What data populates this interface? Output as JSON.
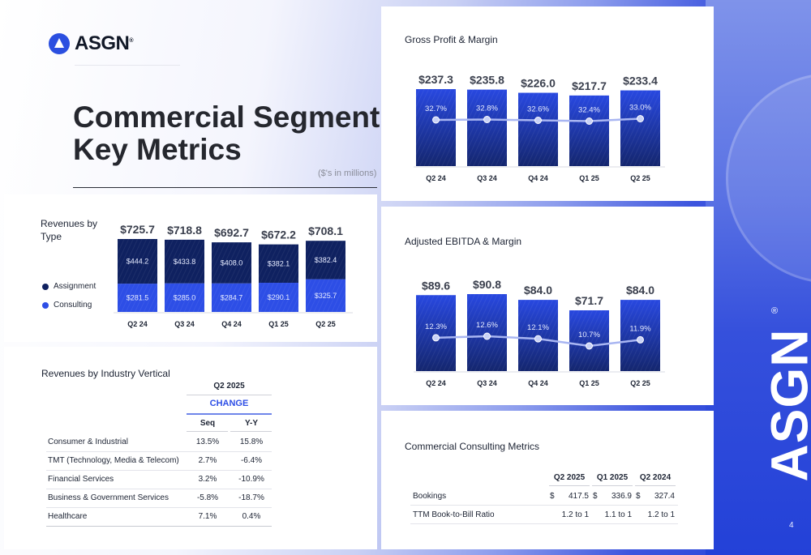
{
  "brand": {
    "name": "ASGN",
    "registered": "®",
    "page_number": "4"
  },
  "header": {
    "title_line1": "Commercial Segment",
    "title_line2": "Key Metrics",
    "units_note": "($'s in millions)"
  },
  "colors": {
    "assignment": "#0f2160",
    "consulting": "#2d4ee6",
    "bar_blue": "#2544d8",
    "line": "#a9b6f2",
    "accent_text": "#2d4ee6"
  },
  "revenues_by_type": {
    "title_line1": "Revenues by",
    "title_line2": "Type",
    "legend": [
      {
        "label": "Assignment",
        "color": "#0f2160"
      },
      {
        "label": "Consulting",
        "color": "#2d4ee6"
      }
    ]
  },
  "industry": {
    "title": "Revenues by Industry Vertical",
    "period": "Q2 2025",
    "change_label": "CHANGE",
    "columns": [
      "Seq",
      "Y-Y"
    ],
    "rows": [
      {
        "label": "Consumer & Industrial",
        "seq": "13.5%",
        "yy": "15.8%"
      },
      {
        "label": "TMT (Technology, Media & Telecom)",
        "seq": "2.7%",
        "yy": "-6.4%"
      },
      {
        "label": "Financial Services",
        "seq": "3.2%",
        "yy": "-10.9%"
      },
      {
        "label": "Business & Government Services",
        "seq": "-5.8%",
        "yy": "-18.7%"
      },
      {
        "label": "Healthcare",
        "seq": "7.1%",
        "yy": "0.4%"
      }
    ]
  },
  "gross_profit": {
    "title": "Gross Profit & Margin"
  },
  "ebitda": {
    "title": "Adjusted EBITDA & Margin"
  },
  "consulting_metrics": {
    "title": "Commercial Consulting Metrics",
    "columns": [
      "Q2 2025",
      "Q1 2025",
      "Q2 2024"
    ],
    "rows": [
      {
        "label": "Bookings",
        "currency": "$",
        "values": [
          "417.5",
          "336.9",
          "327.4"
        ]
      },
      {
        "label": "TTM Book-to-Bill Ratio",
        "currency": "",
        "values": [
          "1.2 to 1",
          "1.1 to 1",
          "1.2 to 1"
        ]
      }
    ]
  },
  "chart_data": [
    {
      "type": "bar",
      "stacked": true,
      "title": "Revenues by Type",
      "categories": [
        "Q2 24",
        "Q3 24",
        "Q4 24",
        "Q1 25",
        "Q2 25"
      ],
      "series": [
        {
          "name": "Consulting",
          "values": [
            281.5,
            285.0,
            284.7,
            290.1,
            325.7
          ],
          "labels": [
            "$281.5",
            "$285.0",
            "$284.7",
            "$290.1",
            "$325.7"
          ]
        },
        {
          "name": "Assignment",
          "values": [
            444.2,
            433.8,
            408.0,
            382.1,
            382.4
          ],
          "labels": [
            "$444.2",
            "$433.8",
            "$408.0",
            "$382.1",
            "$382.4"
          ]
        }
      ],
      "totals": [
        725.7,
        718.8,
        692.7,
        672.2,
        708.1
      ],
      "total_labels": [
        "$725.7",
        "$718.8",
        "$692.7",
        "$672.2",
        "$708.1"
      ],
      "xlabel": "",
      "ylabel": "",
      "legend": "left",
      "grid": false
    },
    {
      "type": "bar",
      "title": "Gross Profit & Margin",
      "categories": [
        "Q2 24",
        "Q3 24",
        "Q4 24",
        "Q1 25",
        "Q2 25"
      ],
      "series": [
        {
          "name": "Gross Profit",
          "values": [
            237.3,
            235.8,
            226.0,
            217.7,
            233.4
          ],
          "labels": [
            "$237.3",
            "$235.8",
            "$226.0",
            "$217.7",
            "$233.4"
          ]
        },
        {
          "name": "Gross Margin",
          "type": "line",
          "values": [
            32.7,
            32.8,
            32.6,
            32.4,
            33.0
          ],
          "labels": [
            "32.7%",
            "32.8%",
            "32.6%",
            "32.4%",
            "33.0%"
          ]
        }
      ],
      "xlabel": "",
      "ylabel": "",
      "grid": false
    },
    {
      "type": "bar",
      "title": "Adjusted EBITDA & Margin",
      "categories": [
        "Q2 24",
        "Q3 24",
        "Q4 24",
        "Q1 25",
        "Q2 25"
      ],
      "series": [
        {
          "name": "Adjusted EBITDA",
          "values": [
            89.6,
            90.8,
            84.0,
            71.7,
            84.0
          ],
          "labels": [
            "$89.6",
            "$90.8",
            "$84.0",
            "$71.7",
            "$84.0"
          ]
        },
        {
          "name": "Adjusted EBITDA Margin",
          "type": "line",
          "values": [
            12.3,
            12.6,
            12.1,
            10.7,
            11.9
          ],
          "labels": [
            "12.3%",
            "12.6%",
            "12.1%",
            "10.7%",
            "11.9%"
          ]
        }
      ],
      "xlabel": "",
      "ylabel": "",
      "grid": false
    }
  ]
}
